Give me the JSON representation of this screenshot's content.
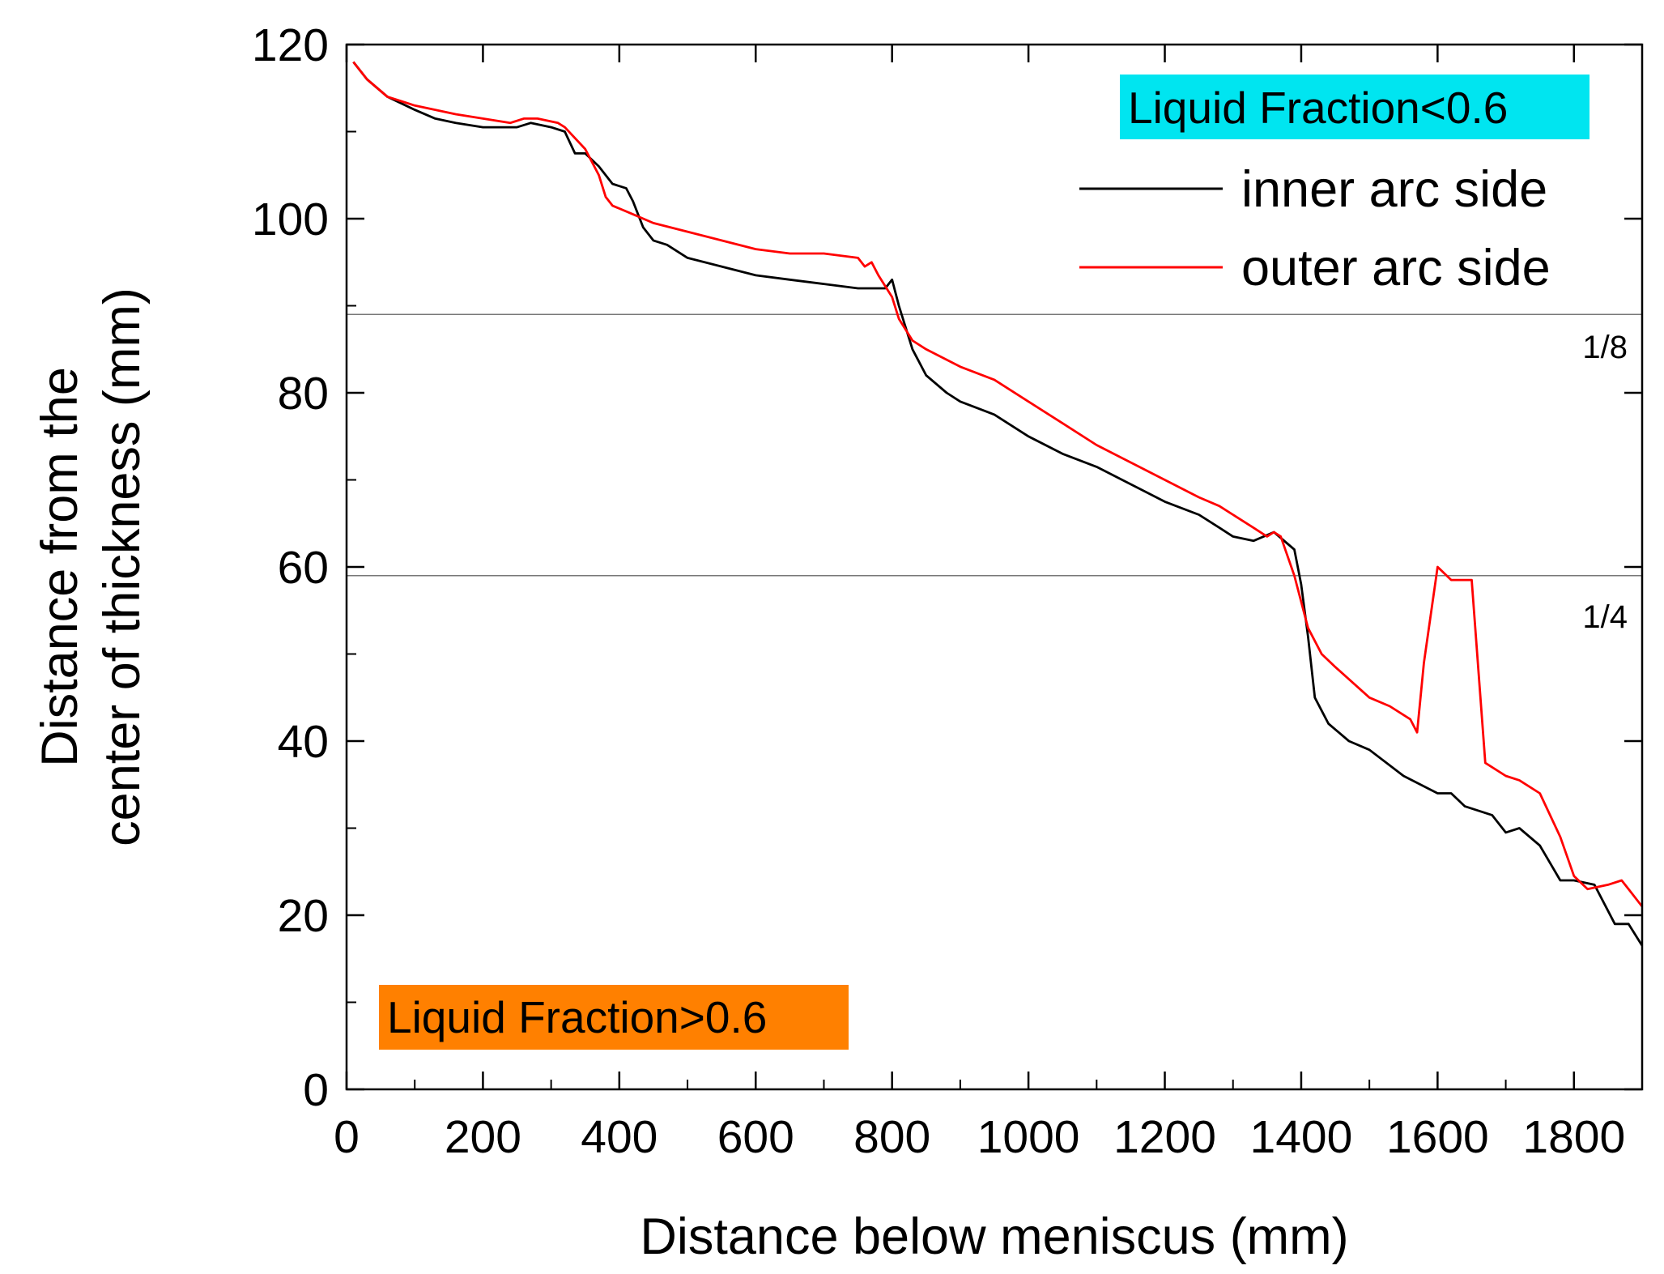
{
  "chart_data": {
    "type": "line",
    "title": "",
    "xlabel": "Distance below meniscus (mm)",
    "ylabel_lines": [
      "Distance from the",
      "center of thickness (mm)"
    ],
    "xlim": [
      0,
      1900
    ],
    "ylim": [
      0,
      120
    ],
    "xticks": [
      0,
      200,
      400,
      600,
      800,
      1000,
      1200,
      1400,
      1600,
      1800
    ],
    "yticks": [
      0,
      20,
      40,
      60,
      80,
      100,
      120
    ],
    "xtick_labels": [
      "0",
      "200",
      "400",
      "600",
      "800",
      "1000",
      "1200",
      "1400",
      "1600",
      "1800"
    ],
    "ytick_labels": [
      "0",
      "20",
      "40",
      "60",
      "80",
      "100",
      "120"
    ],
    "grid": false,
    "legend_position": "top-right",
    "series": [
      {
        "name": "inner arc side",
        "color": "#000000",
        "x": [
          10,
          30,
          60,
          100,
          130,
          160,
          200,
          230,
          250,
          270,
          300,
          320,
          335,
          350,
          370,
          390,
          410,
          420,
          435,
          450,
          470,
          500,
          550,
          600,
          650,
          700,
          750,
          790,
          800,
          810,
          830,
          850,
          880,
          900,
          950,
          1000,
          1050,
          1100,
          1150,
          1200,
          1250,
          1280,
          1300,
          1330,
          1360,
          1390,
          1400,
          1410,
          1420,
          1440,
          1470,
          1500,
          1550,
          1600,
          1620,
          1640,
          1680,
          1700,
          1720,
          1750,
          1780,
          1800,
          1830,
          1860,
          1880,
          1900
        ],
        "y": [
          118,
          116,
          114,
          112.5,
          111.5,
          111,
          110.5,
          110.5,
          110.5,
          111,
          110.5,
          110,
          107.5,
          107.5,
          106,
          104,
          103.5,
          102,
          99,
          97.5,
          97,
          95.5,
          94.5,
          93.5,
          93,
          92.5,
          92,
          92,
          93,
          90,
          85,
          82,
          80,
          79,
          77.5,
          75,
          73,
          71.5,
          69.5,
          67.5,
          66,
          64.5,
          63.5,
          63,
          64,
          62,
          58,
          52,
          45,
          42,
          40,
          39,
          36,
          34,
          34,
          32.5,
          31.5,
          29.5,
          30,
          28,
          24,
          24,
          23.5,
          19,
          19,
          16.5
        ]
      },
      {
        "name": "outer arc side",
        "color": "#ff0000",
        "x": [
          10,
          30,
          60,
          100,
          130,
          160,
          200,
          240,
          260,
          280,
          310,
          320,
          350,
          370,
          380,
          390,
          420,
          450,
          500,
          550,
          600,
          650,
          700,
          750,
          760,
          770,
          780,
          800,
          810,
          830,
          850,
          900,
          950,
          1000,
          1050,
          1100,
          1150,
          1200,
          1250,
          1280,
          1300,
          1330,
          1350,
          1360,
          1370,
          1390,
          1410,
          1430,
          1450,
          1500,
          1530,
          1560,
          1570,
          1580,
          1600,
          1620,
          1630,
          1650,
          1670,
          1700,
          1720,
          1750,
          1780,
          1800,
          1820,
          1850,
          1870,
          1880,
          1900
        ],
        "y": [
          118,
          116,
          114,
          113,
          112.5,
          112,
          111.5,
          111,
          111.5,
          111.5,
          111,
          110.5,
          108,
          105,
          102.5,
          101.5,
          100.5,
          99.5,
          98.5,
          97.5,
          96.5,
          96,
          96,
          95.5,
          94.5,
          95,
          93.5,
          91,
          88.5,
          86,
          85,
          83,
          81.5,
          79,
          76.5,
          74,
          72,
          70,
          68,
          67,
          66,
          64.5,
          63.5,
          64,
          63.5,
          59,
          53,
          50,
          48.5,
          45,
          44,
          42.5,
          41,
          49,
          60,
          58.5,
          58.5,
          58.5,
          37.5,
          36,
          35.5,
          34,
          29,
          24.5,
          23,
          23.5,
          24,
          23,
          21
        ]
      }
    ],
    "reference_lines": [
      {
        "y": 89,
        "label": "1/8"
      },
      {
        "y": 59,
        "label": "1/4"
      }
    ],
    "annotations": [
      {
        "text": "Liquid Fraction<0.6",
        "background": "#00e5f0",
        "position": "top-right"
      },
      {
        "text": "Liquid Fraction>0.6",
        "background": "#ff8000",
        "position": "bottom-left"
      }
    ]
  }
}
